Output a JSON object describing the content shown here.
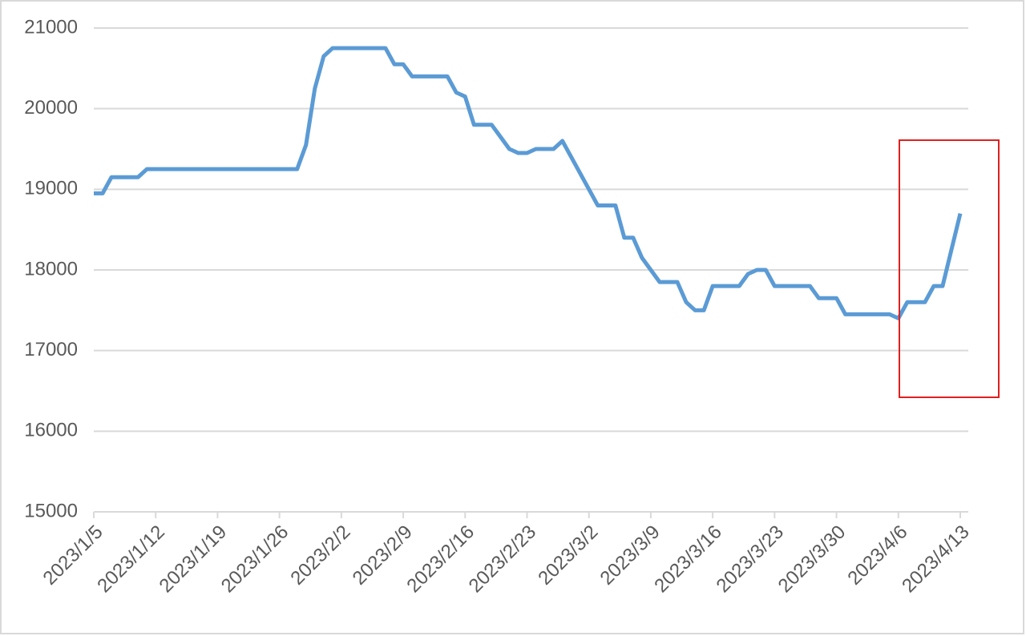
{
  "chart_data": {
    "type": "line",
    "categories": [
      "2023/1/5",
      null,
      null,
      null,
      null,
      null,
      null,
      "2023/1/12",
      null,
      null,
      null,
      null,
      null,
      null,
      "2023/1/19",
      null,
      null,
      null,
      null,
      null,
      null,
      "2023/1/26",
      null,
      null,
      null,
      null,
      null,
      null,
      "2023/2/2",
      null,
      null,
      null,
      null,
      null,
      null,
      "2023/2/9",
      null,
      null,
      null,
      null,
      null,
      null,
      "2023/2/16",
      null,
      null,
      null,
      null,
      null,
      null,
      "2023/2/23",
      null,
      null,
      null,
      null,
      null,
      null,
      "2023/3/2",
      null,
      null,
      null,
      null,
      null,
      null,
      "2023/3/9",
      null,
      null,
      null,
      null,
      null,
      null,
      "2023/3/16",
      null,
      null,
      null,
      null,
      null,
      null,
      "2023/3/23",
      null,
      null,
      null,
      null,
      null,
      null,
      "2023/3/30",
      null,
      null,
      null,
      null,
      null,
      null,
      "2023/4/6",
      null,
      null,
      null,
      null,
      null,
      null,
      "2023/4/13"
    ],
    "values": [
      18950,
      18950,
      19150,
      19150,
      19150,
      19150,
      19250,
      19250,
      19250,
      19250,
      19250,
      19250,
      19250,
      19250,
      19250,
      19250,
      19250,
      19250,
      19250,
      19250,
      19250,
      19250,
      19250,
      19250,
      19550,
      20250,
      20650,
      20750,
      20750,
      20750,
      20750,
      20750,
      20750,
      20750,
      20550,
      20550,
      20400,
      20400,
      20400,
      20400,
      20400,
      20200,
      20150,
      19800,
      19800,
      19800,
      19650,
      19500,
      19450,
      19450,
      19500,
      19500,
      19500,
      19600,
      19400,
      19200,
      19000,
      18800,
      18800,
      18800,
      18400,
      18400,
      18150,
      18000,
      17850,
      17850,
      17850,
      17600,
      17500,
      17500,
      17800,
      17800,
      17800,
      17800,
      17950,
      18000,
      18000,
      17800,
      17800,
      17800,
      17800,
      17800,
      17650,
      17650,
      17650,
      17450,
      17450,
      17450,
      17450,
      17450,
      17450,
      17400,
      17600,
      17600,
      17600,
      17800,
      17800,
      18250,
      18700
    ],
    "color": "#5b9bd5",
    "ylim": [
      15000,
      21000
    ],
    "yticks": [
      15000,
      16000,
      17000,
      18000,
      19000,
      20000,
      21000
    ],
    "grid": true
  }
}
